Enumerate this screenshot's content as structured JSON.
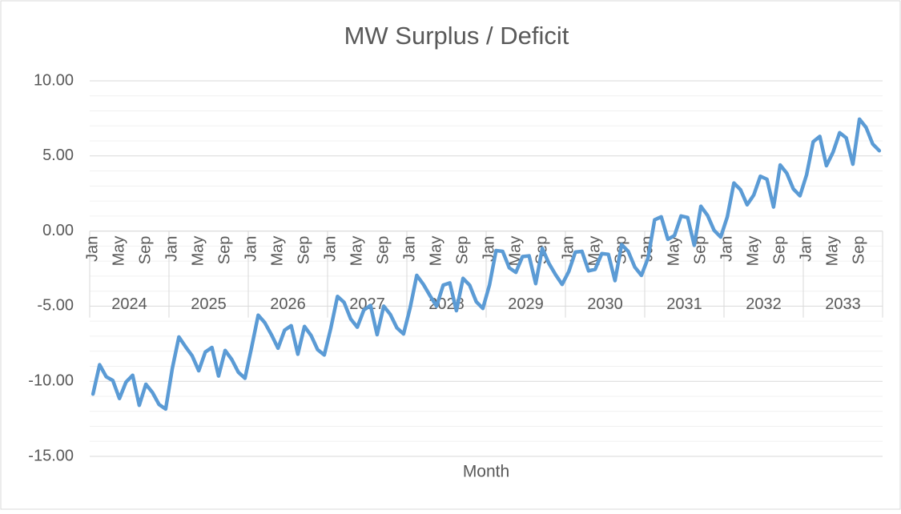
{
  "chart_data": {
    "type": "line",
    "title": "MW Surplus / Deficit",
    "x_label": "Month",
    "categories": [
      "Jan",
      null,
      null,
      null,
      "May",
      null,
      null,
      null,
      "Sep",
      null,
      null,
      null,
      "Jan",
      null,
      null,
      null,
      "May",
      null,
      null,
      null,
      "Sep",
      null,
      null,
      null,
      "Jan",
      null,
      null,
      null,
      "May",
      null,
      null,
      null,
      "Sep",
      null,
      null,
      null,
      "Jan",
      null,
      null,
      null,
      "May",
      null,
      null,
      null,
      "Sep",
      null,
      null,
      null,
      "Jan",
      null,
      null,
      null,
      "May",
      null,
      null,
      null,
      "Sep",
      null,
      null,
      null,
      "Jan",
      null,
      null,
      null,
      "May",
      null,
      null,
      null,
      "Sep",
      null,
      null,
      null,
      "Jan",
      null,
      null,
      null,
      "May",
      null,
      null,
      null,
      "Sep",
      null,
      null,
      null,
      "Jan",
      null,
      null,
      null,
      "May",
      null,
      null,
      null,
      "Sep",
      null,
      null,
      null,
      "Jan",
      null,
      null,
      null,
      "May",
      null,
      null,
      null,
      "Sep",
      null,
      null,
      null,
      "Jan",
      null,
      null,
      null,
      "May",
      null,
      null,
      null,
      "Sep",
      null,
      null,
      null
    ],
    "years": [
      "2024",
      "2025",
      "2026",
      "2027",
      "2028",
      "2029",
      "2030",
      "2031",
      "2032",
      "2033"
    ],
    "series": [
      {
        "name": "MW Surplus / Deficit",
        "color": "#5b9bd5",
        "values": [
          -10.85,
          -8.9,
          -9.7,
          -9.95,
          -11.15,
          -10.05,
          -9.6,
          -11.6,
          -10.2,
          -10.75,
          -11.55,
          -11.85,
          -9.15,
          -7.05,
          -7.7,
          -8.3,
          -9.3,
          -8.05,
          -7.75,
          -9.65,
          -7.95,
          -8.55,
          -9.4,
          -9.8,
          -7.75,
          -5.6,
          -6.1,
          -6.9,
          -7.8,
          -6.6,
          -6.3,
          -8.2,
          -6.35,
          -6.95,
          -7.9,
          -8.25,
          -6.45,
          -4.35,
          -4.75,
          -5.85,
          -6.4,
          -5.25,
          -4.95,
          -6.9,
          -5.0,
          -5.55,
          -6.45,
          -6.85,
          -5.1,
          -2.95,
          -3.55,
          -4.3,
          -5.0,
          -3.6,
          -3.45,
          -5.3,
          -3.15,
          -3.6,
          -4.7,
          -5.15,
          -3.6,
          -1.3,
          -1.35,
          -2.45,
          -2.75,
          -1.7,
          -1.65,
          -3.5,
          -1.15,
          -2.15,
          -2.9,
          -3.55,
          -2.7,
          -1.4,
          -1.35,
          -2.65,
          -2.55,
          -1.5,
          -1.55,
          -3.3,
          -0.9,
          -1.35,
          -2.4,
          -2.95,
          -1.8,
          0.75,
          0.95,
          -0.55,
          -0.3,
          1.0,
          0.9,
          -0.95,
          1.65,
          1.05,
          0.05,
          -0.4,
          0.95,
          3.2,
          2.75,
          1.75,
          2.4,
          3.65,
          3.45,
          1.6,
          4.4,
          3.85,
          2.8,
          2.35,
          3.75,
          5.95,
          6.3,
          4.35,
          5.25,
          6.55,
          6.2,
          4.45,
          7.45,
          6.9,
          5.8,
          5.35
        ]
      }
    ],
    "ylim": [
      -15,
      10
    ],
    "yticks": [
      {
        "value": -15,
        "label": "-15.00"
      },
      {
        "value": -10,
        "label": "-10.00"
      },
      {
        "value": -5,
        "label": "-5.00"
      },
      {
        "value": 0,
        "label": "0.00"
      },
      {
        "value": 5,
        "label": "5.00"
      },
      {
        "value": 10,
        "label": "10.00"
      }
    ],
    "minor_yticks": [
      -14,
      -13,
      -12,
      -11,
      -9,
      -8,
      -7,
      -6,
      -4,
      -3,
      -2,
      -1,
      1,
      2,
      3,
      4,
      6,
      7,
      8,
      9
    ],
    "grid": true
  }
}
